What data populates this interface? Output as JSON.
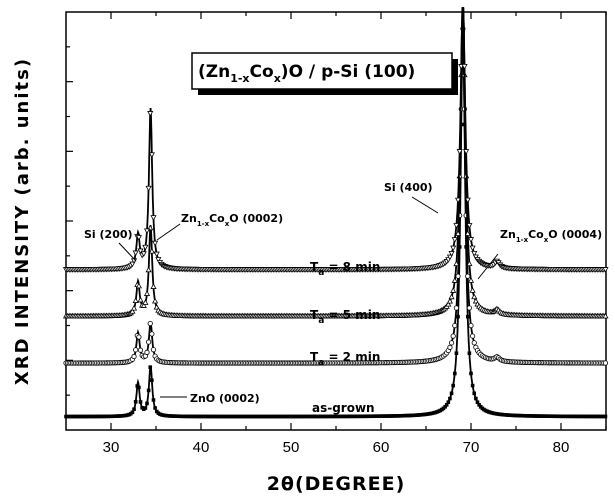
{
  "chart_data": {
    "type": "line",
    "title": "(Zn1-xCox)O / p-Si (100)",
    "title_parts": [
      "(Zn",
      "1-x",
      "Co",
      "x",
      ")O / p-Si (100)"
    ],
    "xlabel": "2θ(DEGREE)",
    "ylabel": "XRD  INTENSITY  (arb. units)",
    "xlim": [
      25,
      85
    ],
    "xticks": [
      30,
      40,
      50,
      60,
      70,
      80
    ],
    "y_tick_labels": false,
    "grid": false,
    "series": [
      {
        "label": "as-grown",
        "marker": "filled-square",
        "baseline": 0.04,
        "peaks": [
          {
            "x": 33.0,
            "height": 0.1
          },
          {
            "x": 34.4,
            "height": 0.15
          },
          {
            "x": 69.1,
            "height": 1.15
          }
        ]
      },
      {
        "label_parts": [
          "T",
          "a",
          " = 2 min"
        ],
        "marker": "open-circle",
        "baseline": 0.2,
        "peaks": [
          {
            "x": 33.0,
            "height": 0.09
          },
          {
            "x": 34.4,
            "height": 0.12
          },
          {
            "x": 69.1,
            "height": 1.0
          },
          {
            "x": 72.9,
            "height": 0.012
          }
        ]
      },
      {
        "label_parts": [
          "T",
          "a",
          " = 5 min"
        ],
        "marker": "open-triangle-up",
        "baseline": 0.34,
        "peaks": [
          {
            "x": 33.0,
            "height": 0.1
          },
          {
            "x": 34.4,
            "height": 0.27
          },
          {
            "x": 69.1,
            "height": 0.95
          },
          {
            "x": 72.9,
            "height": 0.015
          }
        ]
      },
      {
        "label_parts": [
          "T",
          "a",
          " = 8 min"
        ],
        "marker": "open-triangle-down",
        "baseline": 0.48,
        "peaks": [
          {
            "x": 33.0,
            "height": 0.1
          },
          {
            "x": 34.4,
            "height": 0.48
          },
          {
            "x": 69.1,
            "height": 0.8
          },
          {
            "x": 72.9,
            "height": 0.02
          }
        ]
      }
    ],
    "annotations": [
      {
        "parts": [
          "Si (200)"
        ]
      },
      {
        "parts": [
          "Zn",
          "1-x",
          "Co",
          "x",
          "O (0002)"
        ]
      },
      {
        "parts": [
          "Si (400)"
        ]
      },
      {
        "parts": [
          "Zn",
          "1-x",
          "Co",
          "x",
          "O (0004)"
        ]
      },
      {
        "parts": [
          "ZnO (0002)"
        ]
      }
    ]
  }
}
